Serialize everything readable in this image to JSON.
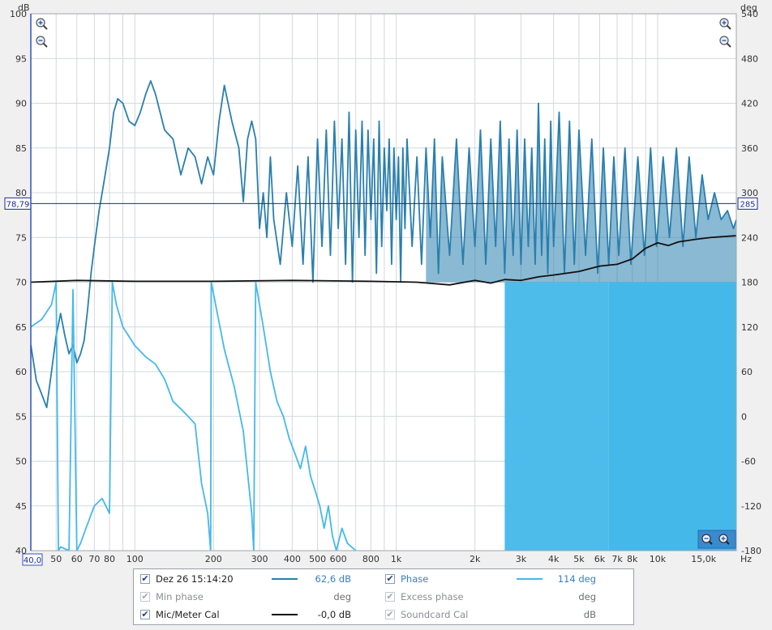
{
  "window": {
    "background": "#f0f0f0"
  },
  "axes": {
    "left_unit": "dB",
    "right_unit": "deg",
    "x_unit": "Hz",
    "left_ticks": [
      "100",
      "95",
      "90",
      "85",
      "80",
      "75",
      "70",
      "65",
      "60",
      "55",
      "50",
      "45",
      "40"
    ],
    "right_ticks": [
      "540",
      "480",
      "420",
      "360",
      "300",
      "240",
      "180",
      "120",
      "60",
      "0",
      "-60",
      "-120",
      "-180"
    ],
    "x_ticks": [
      "50",
      "60",
      "70",
      "80",
      "100",
      "200",
      "300",
      "400",
      "500",
      "600",
      "800",
      "1k",
      "2k",
      "3k",
      "4k",
      "5k",
      "6k",
      "7k",
      "8k",
      "10k",
      "15,0k"
    ],
    "x_start_label": "40,0",
    "cursor_left_label": "78,79",
    "cursor_right_label": "285"
  },
  "chart_data": {
    "type": "line",
    "x_scale": "log",
    "xlim": [
      40,
      20000
    ],
    "ylim": [
      40,
      100
    ],
    "y2lim": [
      -180,
      540
    ],
    "grid": true,
    "cursor": {
      "db": 78.79,
      "deg": 285
    },
    "series": [
      {
        "name": "Dez 26 15:14:20",
        "axis": "left",
        "color": "#2a7fae",
        "points": [
          [
            40,
            63
          ],
          [
            42,
            59
          ],
          [
            44,
            57.5
          ],
          [
            46,
            56
          ],
          [
            48,
            60
          ],
          [
            50,
            64
          ],
          [
            52,
            66.5
          ],
          [
            54,
            64
          ],
          [
            56,
            62
          ],
          [
            58,
            63
          ],
          [
            60,
            61
          ],
          [
            62,
            62
          ],
          [
            64,
            63.5
          ],
          [
            66,
            67
          ],
          [
            68,
            71
          ],
          [
            70,
            74
          ],
          [
            73,
            78
          ],
          [
            76,
            81
          ],
          [
            80,
            85
          ],
          [
            83,
            89
          ],
          [
            86,
            90.5
          ],
          [
            90,
            90
          ],
          [
            95,
            88
          ],
          [
            100,
            87.5
          ],
          [
            105,
            89
          ],
          [
            110,
            91
          ],
          [
            115,
            92.5
          ],
          [
            120,
            91
          ],
          [
            130,
            87
          ],
          [
            140,
            86
          ],
          [
            150,
            82
          ],
          [
            160,
            85
          ],
          [
            170,
            84
          ],
          [
            180,
            81
          ],
          [
            190,
            84
          ],
          [
            200,
            82
          ],
          [
            210,
            88
          ],
          [
            220,
            92
          ],
          [
            235,
            88
          ],
          [
            250,
            85
          ],
          [
            260,
            79
          ],
          [
            270,
            86
          ],
          [
            280,
            88
          ],
          [
            290,
            86
          ],
          [
            300,
            76
          ],
          [
            310,
            80
          ],
          [
            320,
            75
          ],
          [
            330,
            84
          ],
          [
            340,
            77
          ],
          [
            360,
            72
          ],
          [
            380,
            80
          ],
          [
            400,
            74
          ],
          [
            420,
            83
          ],
          [
            440,
            72
          ],
          [
            460,
            84
          ],
          [
            480,
            70
          ],
          [
            500,
            86
          ],
          [
            520,
            74
          ],
          [
            540,
            87
          ],
          [
            560,
            73
          ],
          [
            580,
            88
          ],
          [
            600,
            76
          ],
          [
            620,
            86
          ],
          [
            640,
            72
          ],
          [
            660,
            89
          ],
          [
            680,
            70
          ],
          [
            700,
            87
          ],
          [
            720,
            75
          ],
          [
            740,
            88
          ],
          [
            760,
            73
          ],
          [
            780,
            87
          ],
          [
            800,
            77
          ],
          [
            820,
            86
          ],
          [
            840,
            71
          ],
          [
            860,
            88
          ],
          [
            880,
            74
          ],
          [
            900,
            85
          ],
          [
            920,
            78
          ],
          [
            940,
            86
          ],
          [
            960,
            72
          ],
          [
            980,
            85
          ],
          [
            1000,
            77
          ],
          [
            1020,
            84
          ],
          [
            1040,
            70
          ],
          [
            1060,
            85
          ],
          [
            1080,
            76
          ],
          [
            1100,
            86
          ],
          [
            1150,
            74
          ],
          [
            1200,
            84
          ],
          [
            1250,
            72
          ],
          [
            1300,
            85
          ],
          [
            1350,
            75
          ],
          [
            1400,
            86
          ],
          [
            1450,
            71
          ],
          [
            1500,
            84
          ],
          [
            1600,
            73
          ],
          [
            1700,
            86
          ],
          [
            1800,
            72
          ],
          [
            1900,
            85
          ],
          [
            2000,
            74
          ],
          [
            2100,
            87
          ],
          [
            2200,
            72
          ],
          [
            2300,
            86
          ],
          [
            2400,
            74
          ],
          [
            2500,
            88
          ],
          [
            2600,
            71
          ],
          [
            2700,
            86
          ],
          [
            2800,
            73
          ],
          [
            2900,
            87
          ],
          [
            3000,
            72
          ],
          [
            3100,
            86
          ],
          [
            3200,
            74
          ],
          [
            3300,
            85
          ],
          [
            3400,
            72
          ],
          [
            3500,
            90
          ],
          [
            3600,
            73
          ],
          [
            3700,
            86
          ],
          [
            3800,
            71
          ],
          [
            3900,
            88
          ],
          [
            4000,
            74
          ],
          [
            4200,
            89
          ],
          [
            4400,
            71
          ],
          [
            4600,
            88
          ],
          [
            4800,
            72
          ],
          [
            5000,
            87
          ],
          [
            5300,
            73
          ],
          [
            5600,
            86
          ],
          [
            5900,
            71
          ],
          [
            6200,
            85
          ],
          [
            6500,
            72
          ],
          [
            6800,
            84
          ],
          [
            7100,
            73
          ],
          [
            7500,
            85
          ],
          [
            7900,
            72
          ],
          [
            8400,
            84
          ],
          [
            8900,
            73
          ],
          [
            9400,
            85
          ],
          [
            9900,
            74
          ],
          [
            10500,
            84
          ],
          [
            11100,
            75
          ],
          [
            11800,
            85
          ],
          [
            12500,
            74
          ],
          [
            13200,
            84
          ],
          [
            14000,
            75
          ],
          [
            14800,
            82
          ],
          [
            15600,
            77
          ],
          [
            16500,
            80
          ],
          [
            17500,
            77
          ],
          [
            18500,
            78
          ],
          [
            19500,
            76
          ],
          [
            20000,
            77
          ]
        ]
      },
      {
        "name": "Phase",
        "axis": "right",
        "color": "#45b8ea",
        "points": [
          [
            40,
            120
          ],
          [
            44,
            130
          ],
          [
            48,
            150
          ],
          [
            50,
            180
          ],
          [
            51,
            -180
          ],
          [
            52,
            -175
          ],
          [
            56,
            -180
          ],
          [
            58,
            170
          ],
          [
            60,
            -180
          ],
          [
            62,
            -170
          ],
          [
            65,
            -150
          ],
          [
            70,
            -120
          ],
          [
            75,
            -110
          ],
          [
            80,
            -130
          ],
          [
            82,
            180
          ],
          [
            85,
            150
          ],
          [
            90,
            120
          ],
          [
            100,
            95
          ],
          [
            110,
            80
          ],
          [
            120,
            70
          ],
          [
            130,
            50
          ],
          [
            140,
            20
          ],
          [
            150,
            10
          ],
          [
            160,
            0
          ],
          [
            170,
            -10
          ],
          [
            180,
            -90
          ],
          [
            190,
            -130
          ],
          [
            195,
            -180
          ],
          [
            196,
            180
          ],
          [
            220,
            90
          ],
          [
            240,
            40
          ],
          [
            260,
            -20
          ],
          [
            280,
            -130
          ],
          [
            285,
            -180
          ],
          [
            290,
            180
          ],
          [
            310,
            120
          ],
          [
            330,
            60
          ],
          [
            350,
            20
          ],
          [
            370,
            0
          ],
          [
            390,
            -30
          ],
          [
            410,
            -50
          ],
          [
            430,
            -70
          ],
          [
            450,
            -40
          ],
          [
            470,
            -80
          ],
          [
            490,
            -100
          ],
          [
            510,
            -120
          ],
          [
            530,
            -150
          ],
          [
            550,
            -120
          ],
          [
            570,
            -160
          ],
          [
            590,
            -180
          ],
          [
            620,
            -150
          ],
          [
            650,
            -170
          ],
          [
            700,
            -180
          ]
        ]
      },
      {
        "name": "Mic/Meter Cal",
        "axis": "left",
        "color": "#111111",
        "points": [
          [
            40,
            70
          ],
          [
            60,
            70.2
          ],
          [
            100,
            70.1
          ],
          [
            200,
            70.1
          ],
          [
            400,
            70.2
          ],
          [
            800,
            70.1
          ],
          [
            1200,
            70
          ],
          [
            1600,
            69.7
          ],
          [
            2000,
            70.2
          ],
          [
            2300,
            69.9
          ],
          [
            2600,
            70.3
          ],
          [
            3000,
            70.2
          ],
          [
            3500,
            70.6
          ],
          [
            4000,
            70.8
          ],
          [
            5000,
            71.2
          ],
          [
            6000,
            71.8
          ],
          [
            7000,
            72
          ],
          [
            8000,
            72.6
          ],
          [
            9000,
            73.8
          ],
          [
            10000,
            74.4
          ],
          [
            11000,
            74.1
          ],
          [
            12000,
            74.5
          ],
          [
            14000,
            74.8
          ],
          [
            16000,
            75
          ],
          [
            20000,
            75.2
          ]
        ]
      }
    ]
  },
  "legend": {
    "rows": [
      {
        "left": {
          "label": "Dez 26 15:14:20",
          "checked": true,
          "enabled": true,
          "swatch": "#2a7fae",
          "value": "62,6 dB",
          "value_color": "#3a7fc0"
        },
        "right": {
          "label": "Phase",
          "checked": true,
          "enabled": true,
          "swatch": "#45b8ea",
          "value": "114 deg",
          "value_color": "#3a7fc0"
        }
      },
      {
        "left": {
          "label": "Min phase",
          "checked": true,
          "enabled": false,
          "swatch": "",
          "value": "deg",
          "value_color": "#6a6f74"
        },
        "right": {
          "label": "Excess phase",
          "checked": true,
          "enabled": false,
          "swatch": "",
          "value": "deg",
          "value_color": "#6a6f74"
        }
      },
      {
        "left": {
          "label": "Mic/Meter Cal",
          "checked": true,
          "enabled": true,
          "swatch": "#111111",
          "value": "-0,0 dB",
          "value_color": "#222222"
        },
        "right": {
          "label": "Soundcard Cal",
          "checked": true,
          "enabled": false,
          "swatch": "",
          "value": "dB",
          "value_color": "#6a6f74"
        }
      }
    ]
  },
  "icons": {
    "zoom_in": "zoom-in-icon",
    "zoom_out": "zoom-out-icon"
  }
}
